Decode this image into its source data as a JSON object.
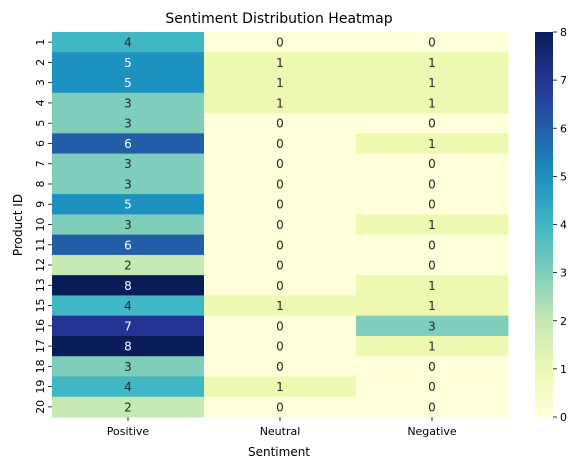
{
  "chart_data": {
    "type": "heatmap",
    "title": "Sentiment Distribution Heatmap",
    "xlabel": "Sentiment",
    "ylabel": "Product ID",
    "x_categories": [
      "Positive",
      "Neutral",
      "Negative"
    ],
    "y_categories": [
      "1",
      "2",
      "3",
      "4",
      "5",
      "6",
      "7",
      "8",
      "9",
      "10",
      "11",
      "12",
      "13",
      "15",
      "16",
      "17",
      "18",
      "19",
      "20"
    ],
    "values": [
      [
        4,
        0,
        0
      ],
      [
        5,
        1,
        1
      ],
      [
        5,
        1,
        1
      ],
      [
        3,
        1,
        1
      ],
      [
        3,
        0,
        0
      ],
      [
        6,
        0,
        1
      ],
      [
        3,
        0,
        0
      ],
      [
        3,
        0,
        0
      ],
      [
        5,
        0,
        0
      ],
      [
        3,
        0,
        1
      ],
      [
        6,
        0,
        0
      ],
      [
        2,
        0,
        0
      ],
      [
        8,
        0,
        1
      ],
      [
        4,
        1,
        1
      ],
      [
        7,
        0,
        3
      ],
      [
        8,
        0,
        1
      ],
      [
        3,
        0,
        0
      ],
      [
        4,
        1,
        0
      ],
      [
        2,
        0,
        0
      ]
    ],
    "colorbar": {
      "min": 0,
      "max": 8,
      "ticks": [
        "0",
        "1",
        "2",
        "3",
        "4",
        "5",
        "6",
        "7",
        "8"
      ],
      "colormap": "YlGnBu"
    },
    "annotations": true,
    "grid": false
  }
}
